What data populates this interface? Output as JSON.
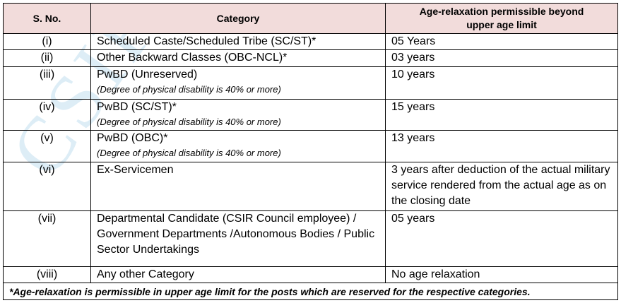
{
  "watermark": "CSIR",
  "table": {
    "header": [
      "S. No.",
      "Category",
      "Age-relaxation permissible beyond upper age limit"
    ],
    "rows": [
      {
        "sno": "(i)",
        "category": "Scheduled Caste/Scheduled Tribe (SC/ST)*",
        "relaxation": "05 Years"
      },
      {
        "sno": "(ii)",
        "category": "Other Backward Classes (OBC-NCL)*",
        "relaxation": "03 years"
      },
      {
        "sno": "(iii)",
        "category": "PwBD (Unreserved)",
        "note": "(Degree of physical disability is 40% or more)",
        "relaxation": "10 years"
      },
      {
        "sno": "(iv)",
        "category": "PwBD (SC/ST)*",
        "note": "(Degree of physical disability is 40% or more)",
        "relaxation": "15 years"
      },
      {
        "sno": "(v)",
        "category": "PwBD (OBC)*",
        "note": "(Degree of physical disability is 40% or more)",
        "relaxation": "13 years"
      },
      {
        "sno": "(vi)",
        "category": "Ex-Servicemen",
        "relaxation": "3 years after deduction of the actual military service rendered from the actual age as on the closing date"
      },
      {
        "sno": "(vii)",
        "category": "Departmental Candidate (CSIR Council employee) / Government Departments /Autonomous Bodies / Public Sector Undertakings",
        "relaxation": "05 years"
      },
      {
        "sno": "(viii)",
        "category": "Any other Category",
        "relaxation": "No age relaxation"
      }
    ],
    "footnote": "*Age-relaxation is permissible in upper age limit for the posts which are reserved for the respective categories."
  }
}
